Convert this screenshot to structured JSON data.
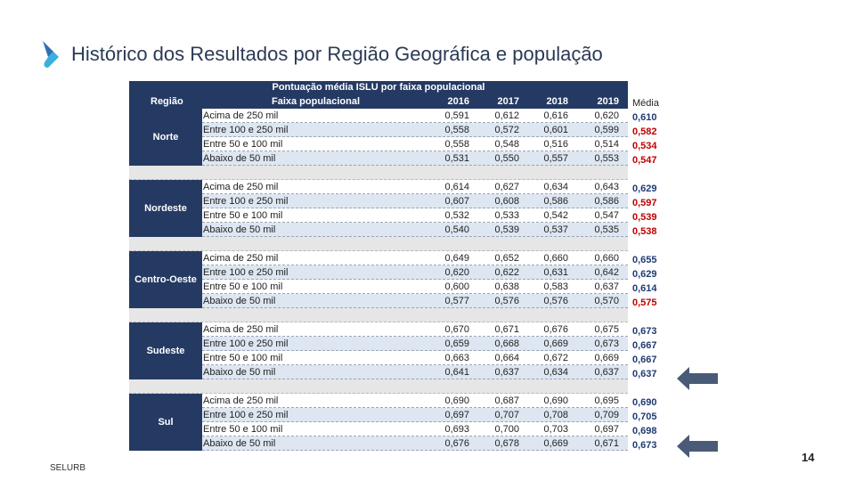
{
  "title": "Histórico dos Resultados por Região Geográfica e população",
  "table": {
    "super_header": "Pontuação média ISLU por faixa populacional",
    "col_region": "Região",
    "col_faixa": "Faixa populacional",
    "years": [
      "2016",
      "2017",
      "2018",
      "2019"
    ],
    "regions": [
      {
        "name": "Norte",
        "rows": [
          {
            "faixa": "Acima de 250 mil",
            "v": [
              "0,591",
              "0,612",
              "0,616",
              "0,620"
            ]
          },
          {
            "faixa": "Entre 100 e 250 mil",
            "v": [
              "0,558",
              "0,572",
              "0,601",
              "0,599"
            ]
          },
          {
            "faixa": "Entre 50 e 100 mil",
            "v": [
              "0,558",
              "0,548",
              "0,516",
              "0,514"
            ]
          },
          {
            "faixa": "Abaixo de 50 mil",
            "v": [
              "0,531",
              "0,550",
              "0,557",
              "0,553"
            ]
          }
        ]
      },
      {
        "name": "Nordeste",
        "rows": [
          {
            "faixa": "Acima de 250 mil",
            "v": [
              "0,614",
              "0,627",
              "0,634",
              "0,643"
            ]
          },
          {
            "faixa": "Entre 100 e 250 mil",
            "v": [
              "0,607",
              "0,608",
              "0,586",
              "0,586"
            ]
          },
          {
            "faixa": "Entre 50 e 100 mil",
            "v": [
              "0,532",
              "0,533",
              "0,542",
              "0,547"
            ]
          },
          {
            "faixa": "Abaixo de 50 mil",
            "v": [
              "0,540",
              "0,539",
              "0,537",
              "0,535"
            ]
          }
        ]
      },
      {
        "name": "Centro-Oeste",
        "rows": [
          {
            "faixa": "Acima de 250 mil",
            "v": [
              "0,649",
              "0,652",
              "0,660",
              "0,660"
            ]
          },
          {
            "faixa": "Entre 100 e 250 mil",
            "v": [
              "0,620",
              "0,622",
              "0,631",
              "0,642"
            ]
          },
          {
            "faixa": "Entre 50 e 100 mil",
            "v": [
              "0,600",
              "0,638",
              "0,583",
              "0,637"
            ]
          },
          {
            "faixa": "Abaixo de 50 mil",
            "v": [
              "0,577",
              "0,576",
              "0,576",
              "0,570"
            ]
          }
        ]
      },
      {
        "name": "Sudeste",
        "rows": [
          {
            "faixa": "Acima de 250 mil",
            "v": [
              "0,670",
              "0,671",
              "0,676",
              "0,675"
            ]
          },
          {
            "faixa": "Entre 100 e 250 mil",
            "v": [
              "0,659",
              "0,668",
              "0,669",
              "0,673"
            ]
          },
          {
            "faixa": "Entre 50 e 100 mil",
            "v": [
              "0,663",
              "0,664",
              "0,672",
              "0,669"
            ]
          },
          {
            "faixa": "Abaixo de 50 mil",
            "v": [
              "0,641",
              "0,637",
              "0,634",
              "0,637"
            ]
          }
        ]
      },
      {
        "name": "Sul",
        "rows": [
          {
            "faixa": "Acima de 250 mil",
            "v": [
              "0,690",
              "0,687",
              "0,690",
              "0,695"
            ]
          },
          {
            "faixa": "Entre 100 e 250 mil",
            "v": [
              "0,697",
              "0,707",
              "0,708",
              "0,709"
            ]
          },
          {
            "faixa": "Entre 50 e 100 mil",
            "v": [
              "0,693",
              "0,700",
              "0,703",
              "0,697"
            ]
          },
          {
            "faixa": "Abaixo de 50 mil",
            "v": [
              "0,676",
              "0,678",
              "0,669",
              "0,671"
            ]
          }
        ]
      }
    ]
  },
  "media": {
    "header": "Média",
    "groups": [
      [
        {
          "value": "0,610",
          "color": "#1f3b73"
        },
        {
          "value": "0,582",
          "color": "#c00000"
        },
        {
          "value": "0,534",
          "color": "#c00000"
        },
        {
          "value": "0,547",
          "color": "#c00000"
        }
      ],
      [
        {
          "value": "0,629",
          "color": "#1f3b73"
        },
        {
          "value": "0,597",
          "color": "#c00000"
        },
        {
          "value": "0,539",
          "color": "#c00000"
        },
        {
          "value": "0,538",
          "color": "#c00000"
        }
      ],
      [
        {
          "value": "0,655",
          "color": "#1f3b73"
        },
        {
          "value": "0,629",
          "color": "#1f3b73"
        },
        {
          "value": "0,614",
          "color": "#1f3b73"
        },
        {
          "value": "0,575",
          "color": "#c00000"
        }
      ],
      [
        {
          "value": "0,673",
          "color": "#1f3b73"
        },
        {
          "value": "0,667",
          "color": "#1f3b73"
        },
        {
          "value": "0,667",
          "color": "#1f3b73"
        },
        {
          "value": "0,637",
          "color": "#1f3b73"
        }
      ],
      [
        {
          "value": "0,690",
          "color": "#1f3b73"
        },
        {
          "value": "0,705",
          "color": "#1f3b73"
        },
        {
          "value": "0,698",
          "color": "#1f3b73"
        },
        {
          "value": "0,673",
          "color": "#1f3b73"
        }
      ]
    ]
  },
  "footer": {
    "brand": "SELURB",
    "page": "14"
  },
  "colors": {
    "navy": "#253a63",
    "accent": "#3a9bd5",
    "arrow": "#4a5b78"
  }
}
